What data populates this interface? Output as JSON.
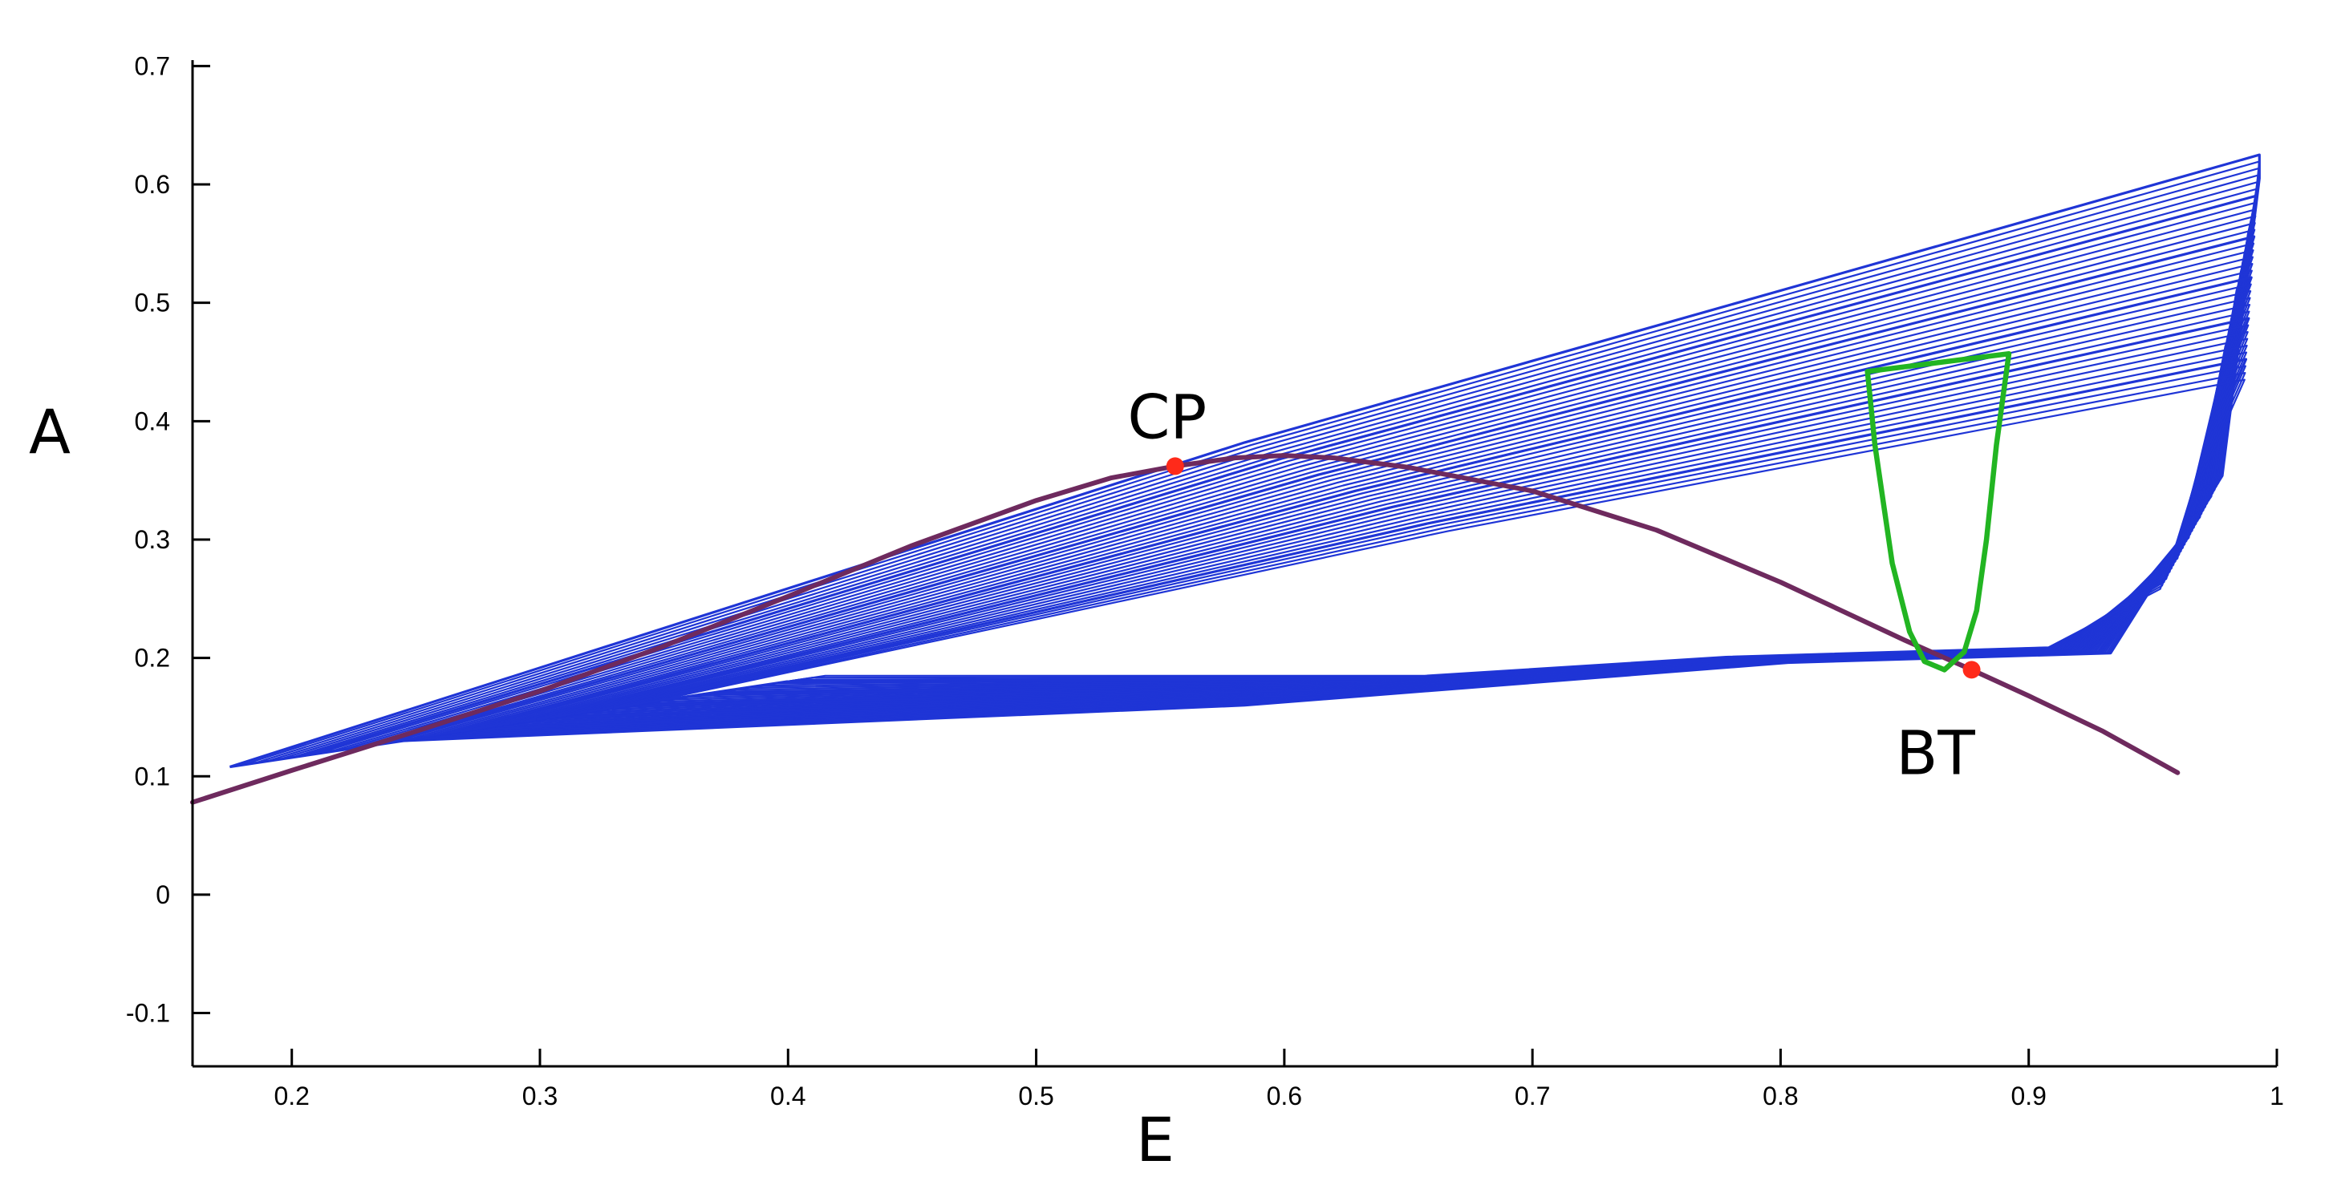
{
  "chart_data": {
    "type": "line",
    "title": "",
    "xlabel": "E",
    "ylabel": "A",
    "xlim": [
      0.16,
      1.0
    ],
    "ylim": [
      -0.145,
      0.705
    ],
    "x_ticks": [
      0.2,
      0.3,
      0.4,
      0.5,
      0.6,
      0.7,
      0.8,
      0.9,
      1
    ],
    "x_tick_labels": [
      "0.2",
      "0.3",
      "0.4",
      "0.5",
      "0.6",
      "0.7",
      "0.8",
      "0.9",
      "1"
    ],
    "y_ticks": [
      0.7,
      0.6,
      0.5,
      0.4,
      0.3,
      0.2,
      0.1,
      0,
      -0.1
    ],
    "y_tick_labels": [
      "0.7",
      "0.6",
      "0.5",
      "0.4",
      "0.3",
      "0.2",
      "0.1",
      "0",
      "-0.1"
    ],
    "grid": false,
    "colors": {
      "cycles": "#1f35d6",
      "purple_curve": "#6e2a5e",
      "green_curve": "#22b522",
      "points": "#ff2a1a"
    },
    "series": [
      {
        "kind": "curve",
        "color": "purple",
        "points": [
          [
            0.16,
            0.078
          ],
          [
            0.2,
            0.105
          ],
          [
            0.25,
            0.138
          ],
          [
            0.3,
            0.172
          ],
          [
            0.35,
            0.21
          ],
          [
            0.4,
            0.252
          ],
          [
            0.45,
            0.295
          ],
          [
            0.5,
            0.333
          ],
          [
            0.53,
            0.352
          ],
          [
            0.556,
            0.362
          ],
          [
            0.58,
            0.369
          ],
          [
            0.6,
            0.371
          ],
          [
            0.62,
            0.369
          ],
          [
            0.65,
            0.361
          ],
          [
            0.7,
            0.341
          ],
          [
            0.75,
            0.308
          ],
          [
            0.8,
            0.264
          ],
          [
            0.85,
            0.215
          ],
          [
            0.877,
            0.19
          ],
          [
            0.9,
            0.168
          ],
          [
            0.93,
            0.138
          ],
          [
            0.96,
            0.103
          ]
        ]
      },
      {
        "kind": "curve",
        "color": "green",
        "points": [
          [
            0.835,
            0.442
          ],
          [
            0.892,
            0.457
          ],
          [
            0.887,
            0.38
          ],
          [
            0.883,
            0.3
          ],
          [
            0.879,
            0.24
          ],
          [
            0.874,
            0.205
          ],
          [
            0.866,
            0.19
          ],
          [
            0.858,
            0.197
          ],
          [
            0.852,
            0.222
          ],
          [
            0.845,
            0.28
          ],
          [
            0.838,
            0.38
          ],
          [
            0.835,
            0.442
          ]
        ]
      }
    ],
    "cycle_family": {
      "count": 34,
      "left_tip_x": [
        0.175,
        0.345
      ],
      "left_tip_y": [
        0.108,
        0.163
      ],
      "top_x": 0.993,
      "top_y": 0.625,
      "right_x": 0.993,
      "bottom_y": 0.2
    },
    "points": [
      {
        "label": "CP",
        "x": 0.556,
        "y": 0.362
      },
      {
        "label": "BT",
        "x": 0.877,
        "y": 0.19
      }
    ]
  }
}
